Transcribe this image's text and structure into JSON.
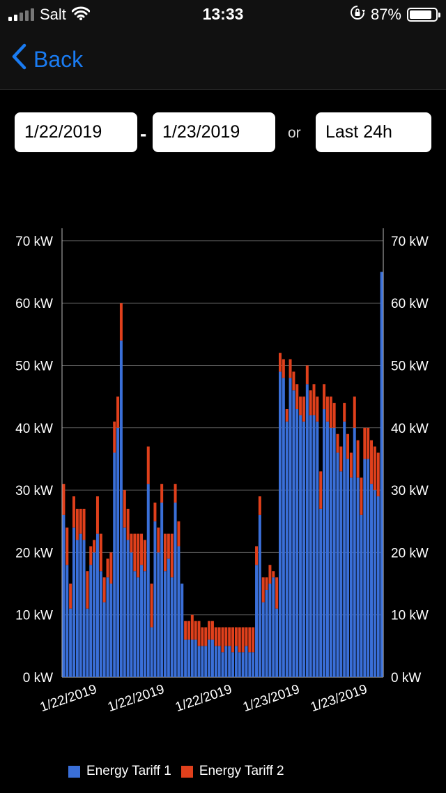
{
  "status_bar": {
    "carrier": "Salt",
    "time": "13:33",
    "battery_percent": "87%",
    "battery_level": 0.87,
    "icons": [
      "signal-icon",
      "wifi-icon",
      "rotation-lock-icon",
      "battery-icon"
    ]
  },
  "nav": {
    "back_label": "Back",
    "accent_color": "#1a7cf3"
  },
  "date_range": {
    "from": "1/22/2019",
    "separator": "-",
    "to": "1/23/2019",
    "or_label": "or",
    "preset": "Last 24h"
  },
  "legend": [
    {
      "label": "Energy Tariff 1",
      "color": "#3a6fd8"
    },
    {
      "label": "Energy Tariff 2",
      "color": "#e0401c"
    }
  ],
  "chart_data": {
    "type": "bar",
    "stacked": true,
    "ylim": [
      0,
      72
    ],
    "y_ticks": [
      0,
      10,
      20,
      30,
      40,
      50,
      60,
      70
    ],
    "y_tick_labels": [
      "0 kW",
      "10 kW",
      "20 kW",
      "30 kW",
      "40 kW",
      "50 kW",
      "60 kW",
      "70 kW"
    ],
    "x_tick_labels": [
      "1/22/2019",
      "1/22/2019",
      "1/22/2019",
      "1/23/2019",
      "1/23/2019"
    ],
    "x_tick_indices": [
      10,
      30,
      50,
      70,
      90
    ],
    "grid": true,
    "legend_position": "bottom",
    "series": [
      {
        "name": "Energy Tariff 1",
        "color": "#3a6fd8",
        "values": [
          26,
          18,
          11,
          24,
          22,
          23,
          22,
          11,
          18,
          20,
          23,
          17,
          12,
          16,
          15,
          36,
          40,
          54,
          24,
          22,
          20,
          17,
          16,
          18,
          17,
          31,
          8,
          25,
          20,
          28,
          17,
          19,
          16,
          28,
          21,
          15,
          6,
          6,
          6,
          6,
          5,
          5,
          5,
          6,
          6,
          5,
          5,
          4,
          5,
          5,
          4,
          5,
          4,
          4,
          5,
          4,
          4,
          18,
          26,
          12,
          14,
          15,
          16,
          11,
          49,
          48,
          41,
          48,
          46,
          43,
          42,
          41,
          47,
          42,
          42,
          41,
          27,
          43,
          41,
          40,
          40,
          36,
          33,
          41,
          35,
          32,
          40,
          32,
          26,
          35,
          35,
          31,
          30,
          29,
          65
        ]
      },
      {
        "name": "Energy Tariff 2",
        "color": "#e0401c",
        "values": [
          5,
          6,
          4,
          5,
          5,
          4,
          5,
          6,
          3,
          2,
          6,
          6,
          4,
          3,
          5,
          5,
          5,
          6,
          6,
          5,
          3,
          6,
          7,
          5,
          5,
          6,
          7,
          3,
          4,
          3,
          6,
          4,
          7,
          3,
          4,
          0,
          3,
          3,
          4,
          3,
          4,
          3,
          3,
          3,
          3,
          3,
          3,
          4,
          3,
          3,
          4,
          3,
          4,
          4,
          3,
          4,
          4,
          3,
          3,
          4,
          2,
          3,
          1,
          5,
          3,
          3,
          2,
          3,
          3,
          4,
          3,
          4,
          3,
          4,
          5,
          4,
          6,
          4,
          4,
          5,
          4,
          3,
          4,
          3,
          4,
          4,
          5,
          6,
          6,
          5,
          5,
          7,
          7,
          7,
          0
        ]
      }
    ]
  }
}
